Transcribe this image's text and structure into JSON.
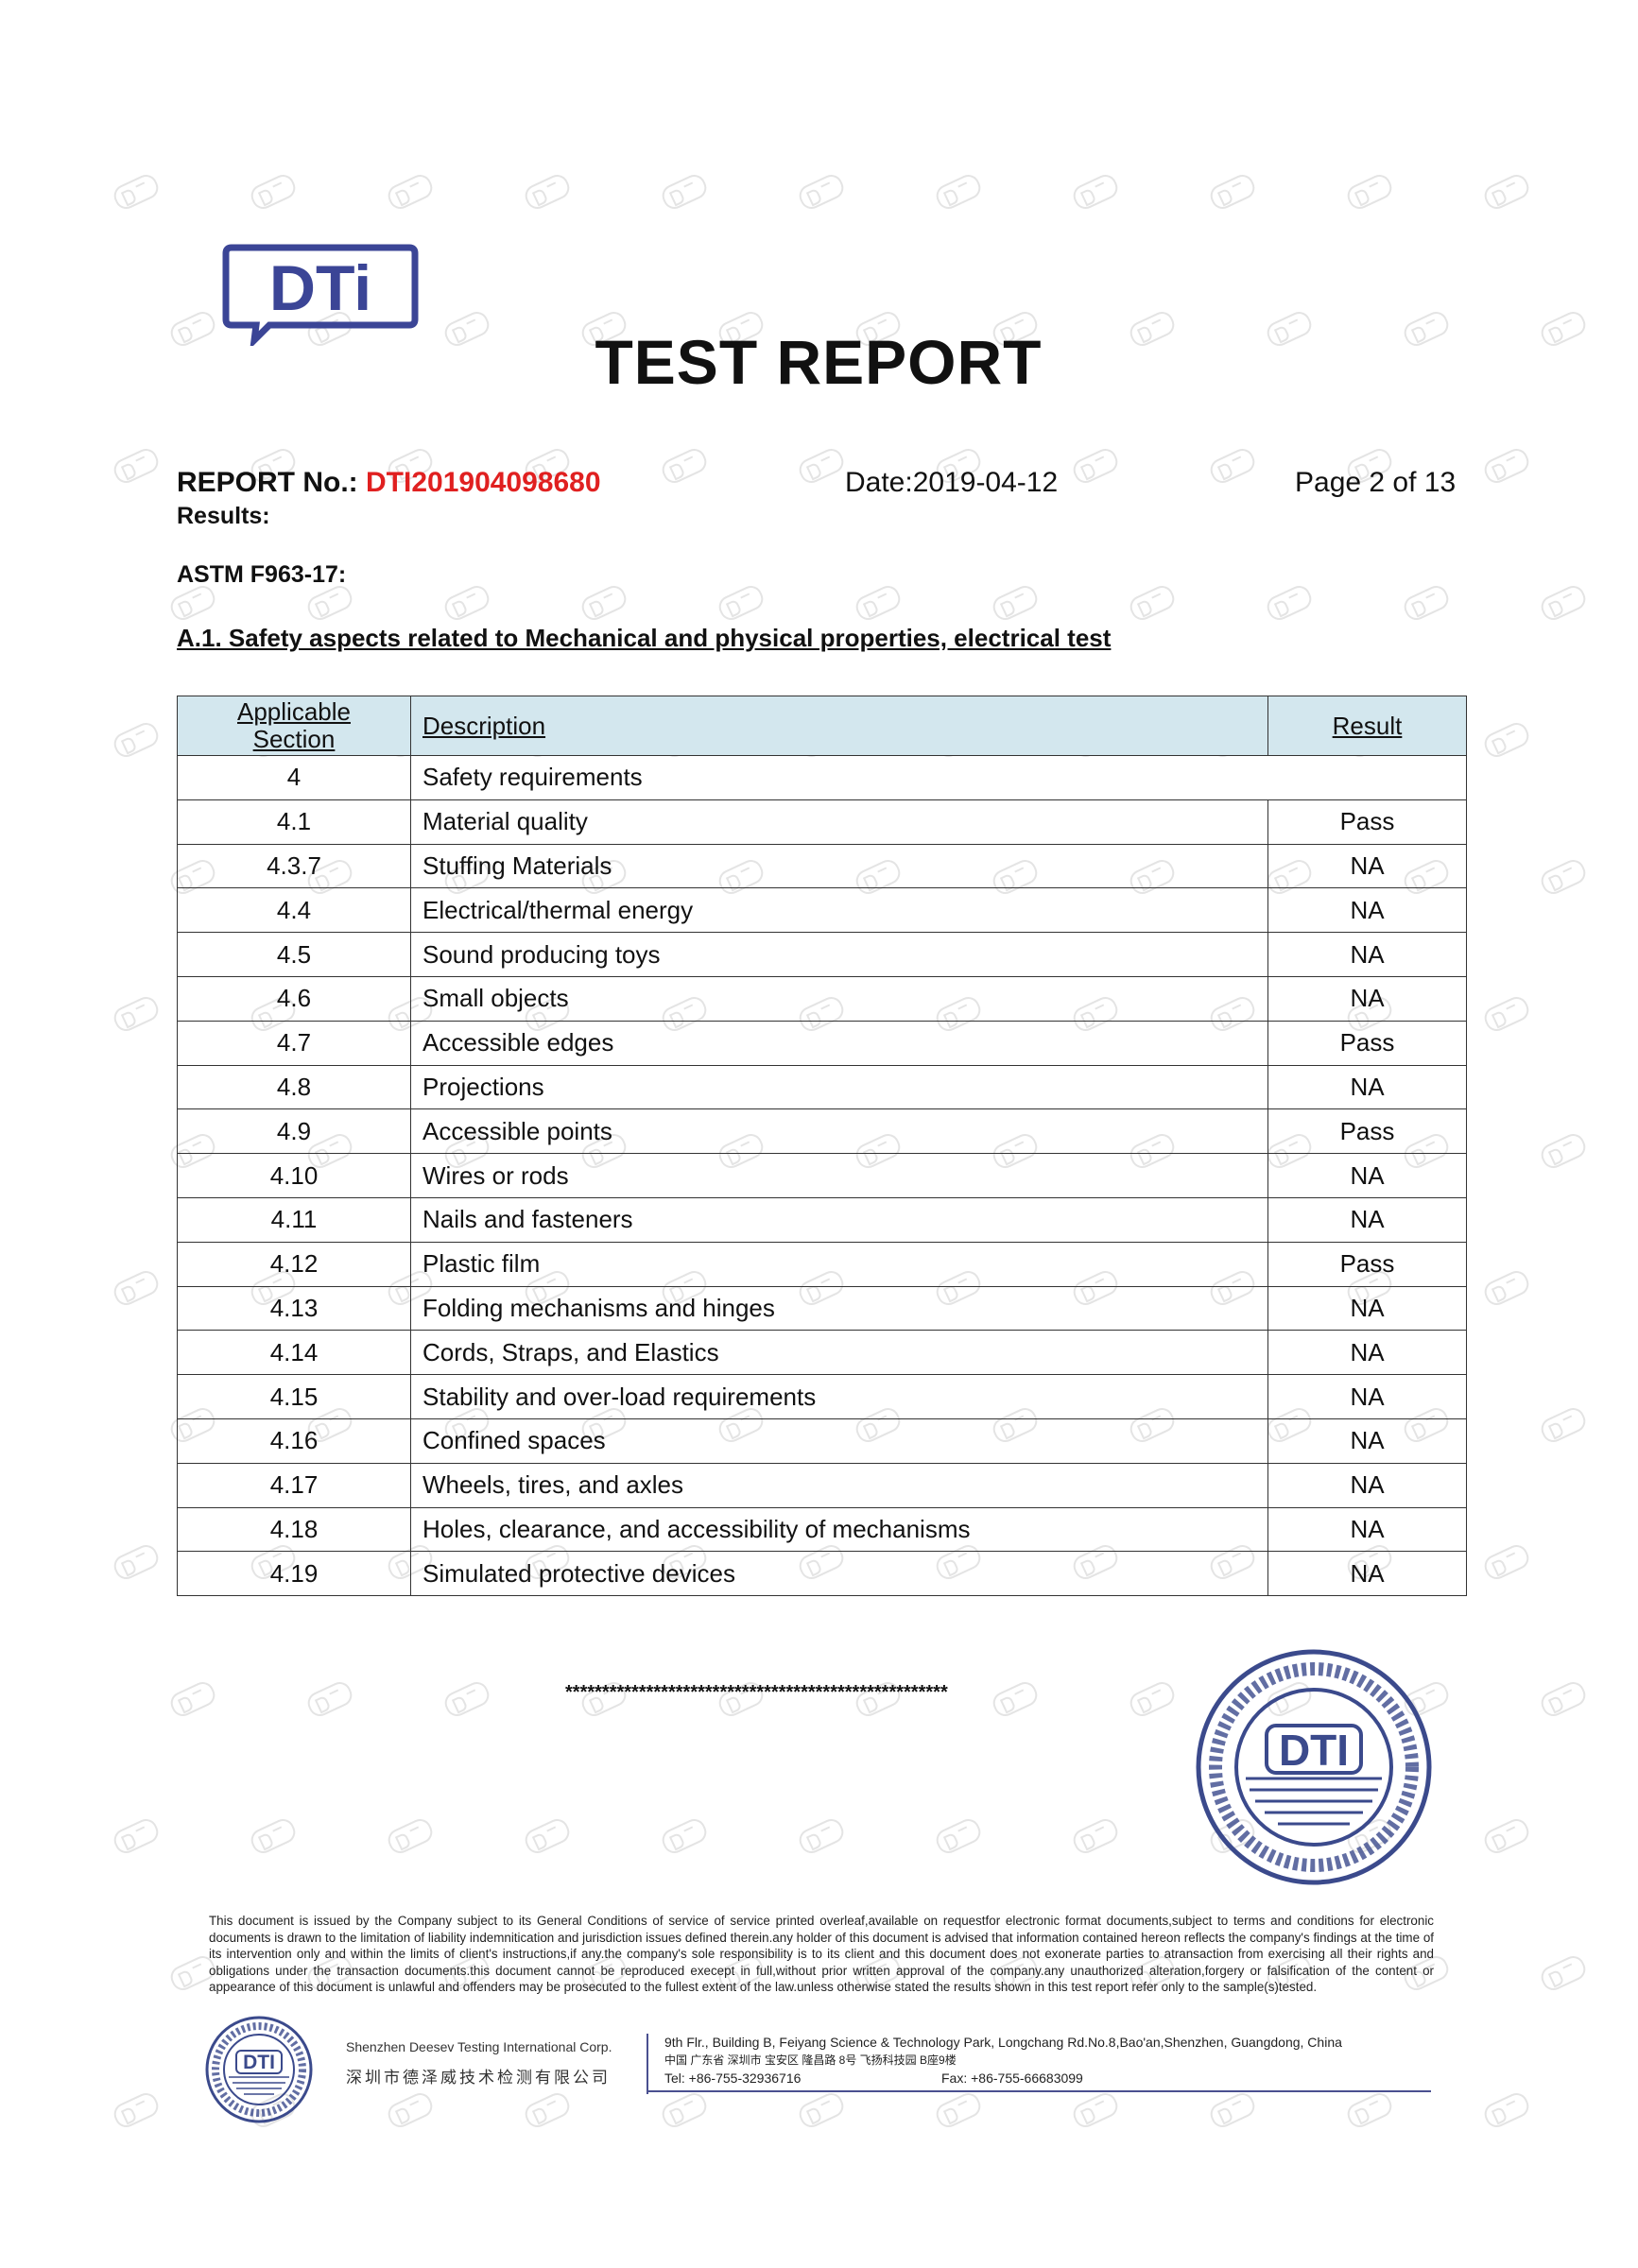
{
  "logo_text": "DTi",
  "title": "TEST REPORT",
  "header": {
    "report_label": "REPORT No.: ",
    "report_number": "DTI201904098680",
    "date": "Date:2019-04-12",
    "page": "Page 2 of 13"
  },
  "results_label": "Results:",
  "standard": "ASTM F963-17:",
  "section_title": "A.1. Safety aspects related to Mechanical and physical properties, electrical test",
  "table": {
    "headers": {
      "section_line1": "Applicable",
      "section_line2": "Section",
      "description": "Description",
      "result": "Result"
    },
    "rows": [
      {
        "section": "4",
        "description": "Safety requirements",
        "result": ""
      },
      {
        "section": "4.1",
        "description": "Material quality",
        "result": "Pass"
      },
      {
        "section": "4.3.7",
        "description": "Stuffing Materials",
        "result": "NA"
      },
      {
        "section": "4.4",
        "description": "Electrical/thermal energy",
        "result": "NA"
      },
      {
        "section": "4.5",
        "description": "Sound producing toys",
        "result": "NA"
      },
      {
        "section": "4.6",
        "description": "Small objects",
        "result": "NA"
      },
      {
        "section": "4.7",
        "description": "Accessible edges",
        "result": "Pass"
      },
      {
        "section": "4.8",
        "description": "Projections",
        "result": "NA"
      },
      {
        "section": "4.9",
        "description": "Accessible points",
        "result": "Pass"
      },
      {
        "section": "4.10",
        "description": "Wires or rods",
        "result": "NA"
      },
      {
        "section": "4.11",
        "description": "Nails and fasteners",
        "result": "NA"
      },
      {
        "section": "4.12",
        "description": "Plastic film",
        "result": "Pass"
      },
      {
        "section": "4.13",
        "description": "Folding mechanisms and hinges",
        "result": "NA"
      },
      {
        "section": "4.14",
        "description": "Cords, Straps, and Elastics",
        "result": "NA"
      },
      {
        "section": "4.15",
        "description": "Stability and over-load requirements",
        "result": "NA"
      },
      {
        "section": "4.16",
        "description": "Confined spaces",
        "result": "NA"
      },
      {
        "section": "4.17",
        "description": "Wheels, tires, and axles",
        "result": "NA"
      },
      {
        "section": "4.18",
        "description": "Holes, clearance, and accessibility of mechanisms",
        "result": "NA"
      },
      {
        "section": "4.19",
        "description": "Simulated protective devices",
        "result": "NA"
      }
    ]
  },
  "end_marker": "****************************************************",
  "stamp": {
    "text_en": "Deesev Testing International",
    "text_cn": "深圳市德泽威技术检测有限公司",
    "center": "DTI"
  },
  "watermark": "DTI",
  "footer": {
    "disclaimer": "This document is issued by the Company subject to its General Conditions of service of service printed overleaf,available on requestfor electronic format documents,subject to terms and conditions for electronic documents is drawn to the limitation of liability indemnitication and jurisdiction issues defined therein.any holder of this document is advised that information contained hereon reflects the company's findings at the time of its intervention only and within the limits of client's instructions,if any.the company's sole responsibility is to its client and this document does not exonerate parties to atransaction from exercising all their rights and obligations under the transaction documents.this document cannot be reproduced execept in full,without prior written approval of the company.any unauthorized alteration,forgery or falsification of the content or appearance of this document is unlawful and offenders may be prosecuted to the fullest extent of the law.unless otherwise stated the results shown in this test report refer only to the sample(s)tested.",
    "company_en": "Shenzhen Deesev Testing International Corp.",
    "company_cn": "深圳市德泽威技术检测有限公司",
    "address_en": "9th Flr., Building B, Feiyang Science & Technology Park, Longchang Rd.No.8,Bao'an,Shenzhen, Guangdong, China",
    "address_cn": "中国 广东省 深圳市 宝安区 隆昌路 8号 飞扬科技园 B座9楼",
    "tel": "Tel: +86-755-32936716",
    "fax": "Fax: +86-755-66683099"
  },
  "colors": {
    "report_number": "#e02020",
    "table_header_bg": "#d3e7ee",
    "logo": "#3b4596"
  }
}
